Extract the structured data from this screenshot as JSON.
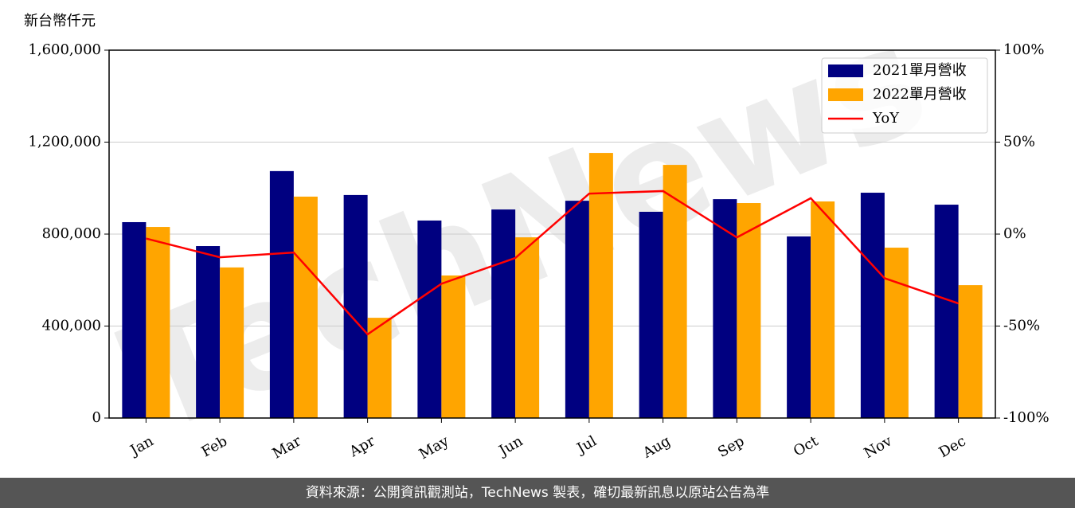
{
  "chart_data": {
    "type": "bar",
    "y_label": "新台幣仟元",
    "watermark": "TechNews",
    "categories": [
      "Jan",
      "Feb",
      "Mar",
      "Apr",
      "May",
      "Jun",
      "Jul",
      "Aug",
      "Sep",
      "Oct",
      "Nov",
      "Dec"
    ],
    "series": [
      {
        "name": "2021單月營收",
        "color": "#000080",
        "values": [
          852000,
          748000,
          1074000,
          970000,
          859000,
          907000,
          945000,
          897000,
          952000,
          790000,
          980000,
          928000
        ]
      },
      {
        "name": "2022單月營收",
        "color": "#ffa500",
        "values": [
          831000,
          655000,
          963000,
          436000,
          620000,
          786000,
          1153000,
          1101000,
          935000,
          942000,
          741000,
          578000
        ]
      },
      {
        "name": "YoY",
        "color": "#ff0000",
        "type": "line",
        "axis": "y2",
        "values": [
          -2.4,
          -12.6,
          -10,
          -54.5,
          -27,
          -13,
          22,
          23.4,
          -1.8,
          19.5,
          -24,
          -37.7
        ]
      }
    ],
    "ylim": [
      0,
      1600000
    ],
    "yticks": [
      0,
      {
        "value": 400000,
        "label": "400,000"
      },
      {
        "value": 800000,
        "label": "800,000"
      },
      {
        "value": 1200000,
        "label": "1,200,000"
      },
      {
        "value": 1600000,
        "label": "1,600,000"
      }
    ],
    "y2lim": [
      -100,
      100
    ],
    "y2ticks": [
      {
        "value": -100,
        "label": "-100%"
      },
      {
        "value": -50,
        "label": "-50%"
      },
      {
        "value": 0,
        "label": "0%"
      },
      {
        "value": 50,
        "label": "50%"
      },
      {
        "value": 100,
        "label": "100%"
      }
    ],
    "grid": true,
    "legend": "upper right"
  },
  "footer": "資料來源：公開資訊觀測站，TechNews 製表，確切最新訊息以原站公告為準"
}
